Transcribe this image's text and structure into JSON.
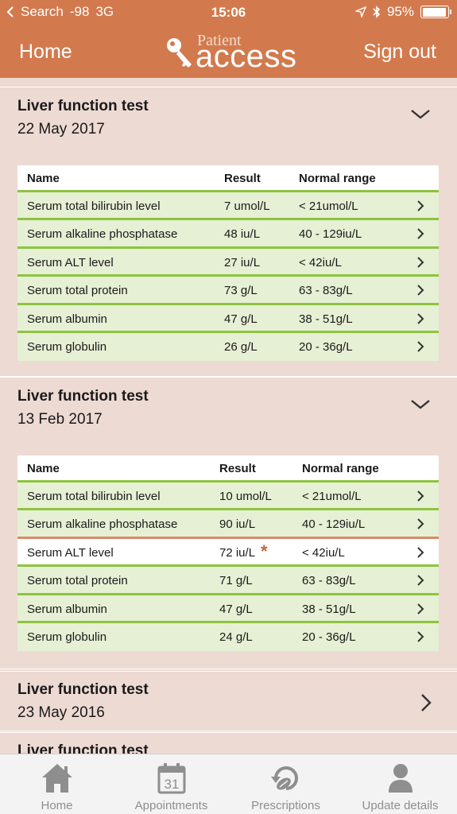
{
  "status": {
    "carrier": "Search",
    "signal": "-98",
    "network": "3G",
    "time": "15:06",
    "battery": "95%"
  },
  "nav": {
    "home": "Home",
    "brand_top": "Patient",
    "brand_main": "access",
    "signout": "Sign out"
  },
  "columns": {
    "name": "Name",
    "result": "Result",
    "range": "Normal range"
  },
  "sections": [
    {
      "title": "Liver function test",
      "date": "22 May 2017",
      "rows": [
        {
          "name": "Serum total bilirubin level",
          "result": "7 umol/L",
          "range": "< 21umol/L"
        },
        {
          "name": "Serum alkaline phosphatase",
          "result": "48 iu/L",
          "range": "40 - 129iu/L"
        },
        {
          "name": "Serum ALT level",
          "result": "27 iu/L",
          "range": "< 42iu/L"
        },
        {
          "name": "Serum total protein",
          "result": "73 g/L",
          "range": "63 - 83g/L"
        },
        {
          "name": "Serum albumin",
          "result": "47 g/L",
          "range": "38 - 51g/L"
        },
        {
          "name": "Serum globulin",
          "result": "26 g/L",
          "range": "20 - 36g/L"
        }
      ]
    },
    {
      "title": "Liver function test",
      "date": "13 Feb 2017",
      "rows": [
        {
          "name": "Serum total bilirubin level",
          "result": "10 umol/L",
          "range": "< 21umol/L"
        },
        {
          "name": "Serum alkaline phosphatase",
          "result": "90 iu/L",
          "range": "40 - 129iu/L"
        },
        {
          "name": "Serum ALT level",
          "result": "72 iu/L",
          "range": "< 42iu/L",
          "flag": "*"
        },
        {
          "name": "Serum total protein",
          "result": "71 g/L",
          "range": "63 - 83g/L"
        },
        {
          "name": "Serum albumin",
          "result": "47 g/L",
          "range": "38 - 51g/L"
        },
        {
          "name": "Serum globulin",
          "result": "24 g/L",
          "range": "20 - 36g/L"
        }
      ]
    },
    {
      "title": "Liver function test",
      "date": "23 May 2016"
    },
    {
      "title": "Liver function test"
    }
  ],
  "tabs": [
    {
      "label": "Home",
      "icon": "home-icon"
    },
    {
      "label": "Appointments",
      "icon": "calendar-icon",
      "icon_text": "31"
    },
    {
      "label": "Prescriptions",
      "icon": "prescription-refresh-icon"
    },
    {
      "label": "Update details",
      "icon": "person-icon"
    }
  ],
  "colors": {
    "accent": "#d27a4e",
    "section_bg": "#eddad3",
    "row_bg": "#e6f0d4",
    "row_border": "#8cc43f",
    "abnormal": "#d98a6a"
  }
}
